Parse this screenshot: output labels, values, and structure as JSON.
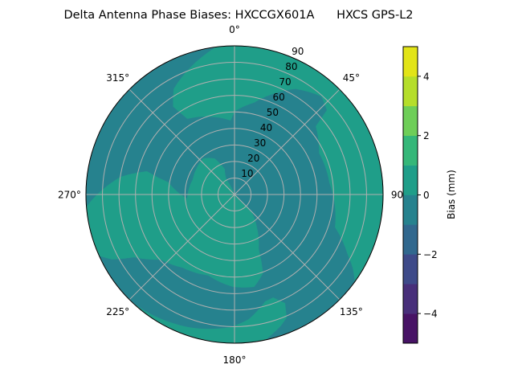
{
  "chart_data": {
    "type": "polar-contour",
    "title": "Delta Antenna Phase Biases: HXCCGX601A      HXCS GPS-L2",
    "angular_ticks": [
      "0°",
      "45°",
      "90°",
      "135°",
      "180°",
      "225°",
      "270°",
      "315°"
    ],
    "angular_tick_values": [
      0,
      45,
      90,
      135,
      180,
      225,
      270,
      315
    ],
    "radial_ticks": [
      "10",
      "20",
      "30",
      "40",
      "50",
      "60",
      "70",
      "80",
      "90"
    ],
    "radial_tick_values": [
      10,
      20,
      30,
      40,
      50,
      60,
      70,
      80,
      90
    ],
    "rlim": [
      0,
      90
    ],
    "theta_direction": "clockwise",
    "theta_zero": "north",
    "grid": true,
    "levels": [
      -5,
      -4,
      -3,
      -2,
      -1,
      0,
      1,
      2,
      3,
      4,
      5
    ],
    "level_colors": [
      "#471365",
      "#482f7a",
      "#3e4a89",
      "#31688e",
      "#26828e",
      "#1f9e89",
      "#35b779",
      "#6ece58",
      "#b5de2b",
      "#e2e418"
    ],
    "background_level": [
      -1,
      0
    ],
    "regions": [
      {
        "level": [
          0,
          1
        ],
        "points_az_r": [
          [
            -8,
            89.4
          ],
          [
            -30,
            73.8
          ],
          [
            -35,
            64.9
          ],
          [
            -32,
            54
          ],
          [
            -3,
            44.8
          ],
          [
            0.6,
            50.6
          ],
          [
            12,
            56.8
          ],
          [
            30,
            73.8
          ],
          [
            41.5,
            79.3
          ],
          [
            47.6,
            75.7
          ],
          [
            50,
            64.2
          ],
          [
            64,
            57
          ],
          [
            83,
            57.9
          ],
          [
            108,
            64
          ],
          [
            118,
            77.7
          ],
          [
            122,
            84.5
          ],
          [
            126,
            90
          ],
          [
            -8,
            90
          ]
        ]
      },
      {
        "level": [
          0,
          1
        ],
        "points_az_r": [
          [
            265.3,
            90
          ],
          [
            269.7,
            83.7
          ],
          [
            278.8,
            69.9
          ],
          [
            284.9,
            54.9
          ],
          [
            280.4,
            40.6
          ],
          [
            265.2,
            28.8
          ],
          [
            290,
            26.9
          ],
          [
            319,
            29
          ],
          [
            331,
            25
          ],
          [
            339,
            16.6
          ],
          [
            332,
            10.4
          ],
          [
            338,
            2.6
          ],
          [
            338,
            0
          ],
          [
            135,
            0
          ],
          [
            135,
            5.5
          ],
          [
            135,
            14.4
          ],
          [
            145.7,
            24.1
          ],
          [
            156,
            36.1
          ],
          [
            160,
            50.6
          ],
          [
            168,
            57.2
          ],
          [
            181,
            55.9
          ],
          [
            198,
            51.5
          ],
          [
            215.5,
            54.4
          ],
          [
            228.6,
            59.6
          ],
          [
            238,
            71.7
          ],
          [
            242,
            83.8
          ],
          [
            245.6,
            90
          ]
        ]
      },
      {
        "level": [
          0,
          1
        ],
        "points_az_r": [
          [
            223.7,
            90
          ],
          [
            213.3,
            88
          ],
          [
            197.4,
            84.6
          ],
          [
            181.7,
            80.3
          ],
          [
            173.4,
            75.9
          ],
          [
            164,
            67.3
          ],
          [
            159.4,
            66.5
          ],
          [
            155,
            72.5
          ],
          [
            157,
            80.9
          ],
          [
            160.4,
            84.2
          ],
          [
            168,
            90
          ]
        ]
      }
    ],
    "colorbar": {
      "label": "Bias (mm)",
      "range": [
        -5,
        5
      ],
      "ticks": [
        "−4",
        "−2",
        "0",
        "2",
        "4"
      ],
      "tick_values": [
        -4,
        -2,
        0,
        2,
        4
      ]
    }
  }
}
